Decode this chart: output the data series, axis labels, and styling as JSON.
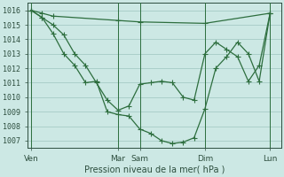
{
  "background_color": "#cce8e4",
  "grid_color": "#aacfca",
  "line_color": "#2d6e3e",
  "marker_color": "#2d6e3e",
  "xlabel": "Pression niveau de la mer( hPa )",
  "ylim": [
    1006.5,
    1016.5
  ],
  "yticks": [
    1007,
    1008,
    1009,
    1010,
    1011,
    1012,
    1013,
    1014,
    1015,
    1016
  ],
  "day_labels": [
    "Ven",
    "Mar",
    "Sam",
    "Dim",
    "Lun"
  ],
  "day_positions": [
    0,
    96,
    120,
    192,
    264
  ],
  "total_xlim": [
    -4,
    276
  ],
  "series1_x": [
    0,
    12,
    24,
    96,
    120,
    192,
    264
  ],
  "series1_y": [
    1016.0,
    1015.8,
    1015.6,
    1015.3,
    1015.2,
    1015.1,
    1015.8
  ],
  "series2_x": [
    0,
    12,
    24,
    36,
    48,
    60,
    72,
    84,
    96,
    108,
    120,
    132,
    144,
    156,
    168,
    180,
    192,
    204,
    216,
    228,
    240,
    252,
    264
  ],
  "series2_y": [
    1016.0,
    1015.5,
    1014.4,
    1013.0,
    1012.2,
    1011.0,
    1011.1,
    1009.0,
    1008.8,
    1008.7,
    1007.8,
    1007.5,
    1007.0,
    1006.8,
    1006.9,
    1007.2,
    1009.2,
    1012.0,
    1012.8,
    1013.8,
    1013.0,
    1011.1,
    1015.8
  ],
  "series3_x": [
    0,
    12,
    24,
    36,
    48,
    60,
    72,
    84,
    96,
    108,
    120,
    132,
    144,
    156,
    168,
    180,
    192,
    204,
    216,
    228,
    240,
    252,
    264
  ],
  "series3_y": [
    1016.0,
    1015.5,
    1015.0,
    1014.3,
    1013.0,
    1012.2,
    1011.0,
    1009.8,
    1009.1,
    1009.4,
    1010.9,
    1011.0,
    1011.1,
    1011.0,
    1010.0,
    1009.8,
    1013.0,
    1013.8,
    1013.3,
    1012.8,
    1011.1,
    1012.2,
    1015.8
  ]
}
